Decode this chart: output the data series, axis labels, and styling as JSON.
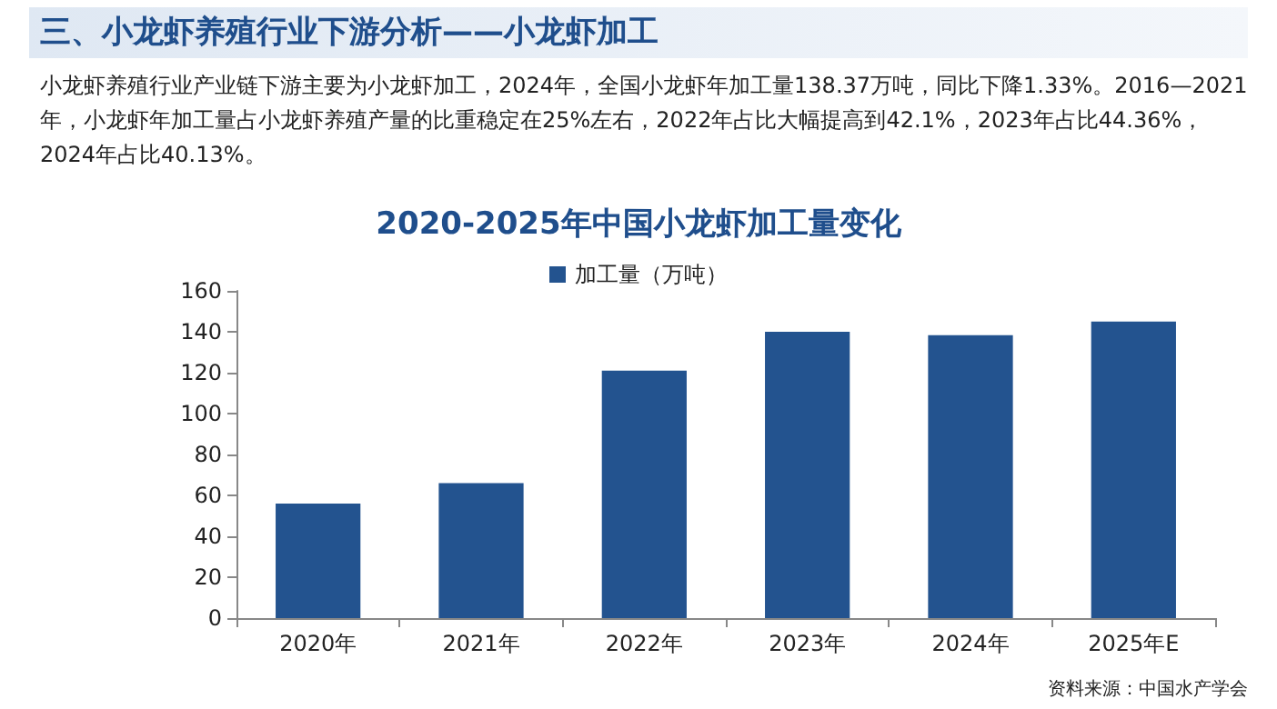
{
  "chart_data": {
    "type": "bar",
    "title": "2020-2025年中国小龙虾加工量变化",
    "categories": [
      "2020年",
      "2021年",
      "2022年",
      "2023年",
      "2024年",
      "2025年E"
    ],
    "series": [
      {
        "name": "加工量（万吨）",
        "color": "#23538f",
        "values": [
          56,
          66,
          121,
          140,
          138.37,
          145
        ]
      }
    ],
    "ylim": [
      0,
      160
    ],
    "yticks": [
      0,
      20,
      40,
      60,
      80,
      100,
      120,
      140,
      160
    ],
    "grid": false,
    "legend": "top",
    "annotations": [
      "三、小龙虾养殖行业下游分析——小龙虾加工",
      "小龙虾养殖行业产业链下游主要为小龙虾加工，2024年，全国小龙虾年加工量138.37万吨，同比下降1.33%。2016—2021年，小龙虾年加工量占小龙虾养殖产量的比重稳定在25%左右，2022年占比大幅提高到42.1%，2023年占比44.36%，2024年占比40.13%。",
      "资料来源：中国水产学会"
    ]
  }
}
